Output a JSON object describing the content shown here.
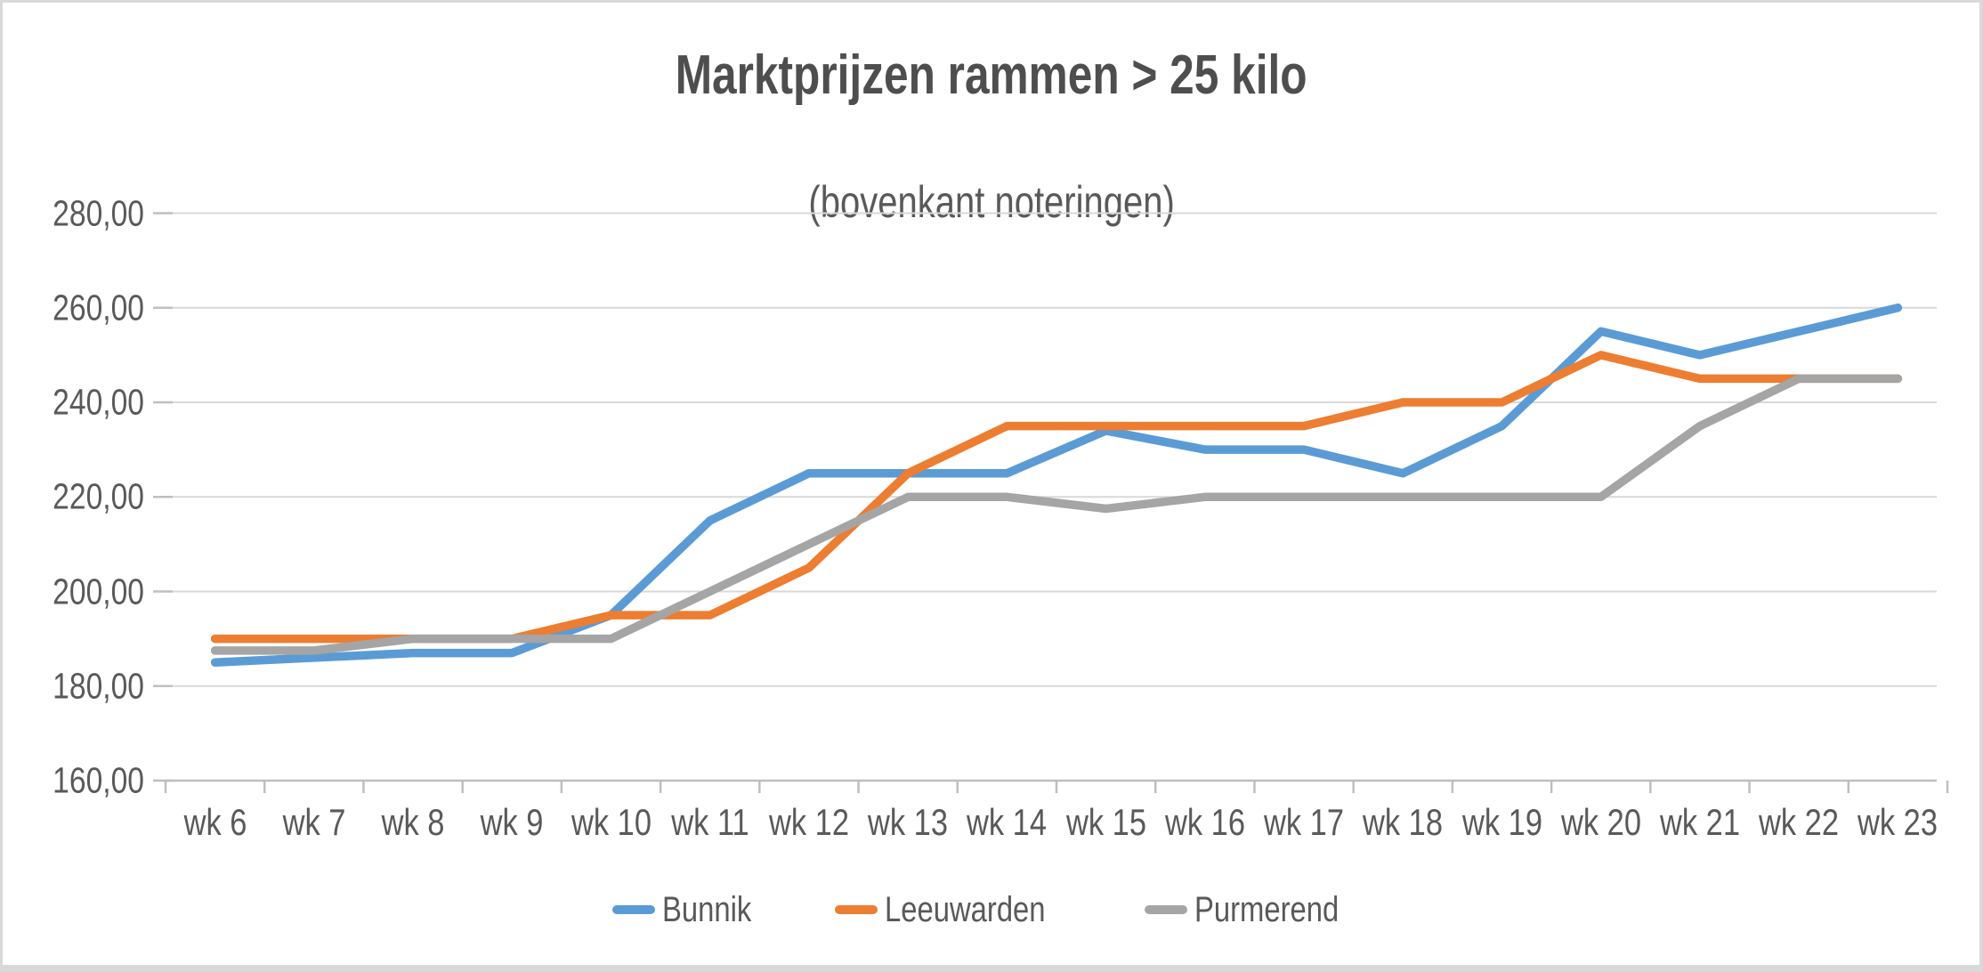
{
  "chart_data": {
    "type": "line",
    "title": "Marktprijzen rammen > 25 kilo",
    "subtitle": "(bovenkant noteringen)",
    "categories": [
      "wk 6",
      "wk 7",
      "wk 8",
      "wk 9",
      "wk 10",
      "wk 11",
      "wk 12",
      "wk 13",
      "wk 14",
      "wk 15",
      "wk 16",
      "wk 17",
      "wk 18",
      "wk 19",
      "wk 20",
      "wk 21",
      "wk 22",
      "wk 23"
    ],
    "series": [
      {
        "name": "Bunnik",
        "color": "#5B9BD5",
        "values": [
          185,
          186,
          187,
          187,
          195,
          215,
          225,
          225,
          225,
          234,
          230,
          230,
          225,
          235,
          255,
          250,
          255,
          260
        ]
      },
      {
        "name": "Leeuwarden",
        "color": "#ED7D31",
        "values": [
          190,
          190,
          190,
          190,
          195,
          195,
          205,
          225,
          235,
          235,
          235,
          235,
          240,
          240,
          250,
          245,
          245,
          245
        ]
      },
      {
        "name": "Purmerend",
        "color": "#A5A5A5",
        "values": [
          187.5,
          187.5,
          190,
          190,
          190,
          200,
          210,
          220,
          220,
          217.5,
          220,
          220,
          220,
          220,
          220,
          235,
          245,
          245
        ]
      }
    ],
    "y_axis": {
      "min": 160,
      "max": 280,
      "step": 20,
      "tick_labels": [
        "160,00",
        "180,00",
        "200,00",
        "220,00",
        "240,00",
        "260,00",
        "280,00"
      ]
    },
    "x_axis": {
      "tick_labels": [
        "wk 6",
        "wk 7",
        "wk 8",
        "wk 9",
        "wk 10",
        "wk 11",
        "wk 12",
        "wk 13",
        "wk 14",
        "wk 15",
        "wk 16",
        "wk 17",
        "wk 18",
        "wk 19",
        "wk 20",
        "wk 21",
        "wk 22",
        "wk 23"
      ]
    },
    "legend_position": "bottom",
    "grid": true
  },
  "colors": {
    "background": "#ffffff",
    "frame_border": "#d9d9d9",
    "gridline": "#d9d9d9",
    "axis_line": "#bfbfbf",
    "tick_mark": "#bfbfbf",
    "title_text": "#4e4e4e",
    "label_text": "#595959",
    "series_bunnik": "#5B9BD5",
    "series_leeuwarden": "#ED7D31",
    "series_purmerend": "#A5A5A5"
  }
}
